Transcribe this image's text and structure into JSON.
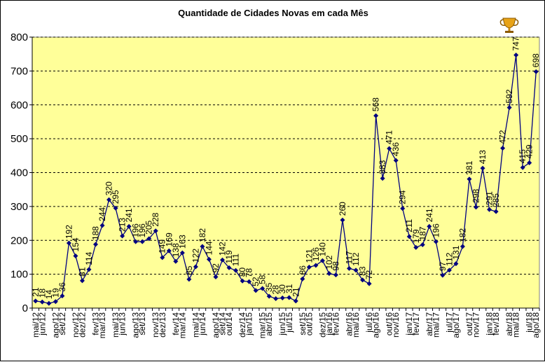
{
  "chart_data": {
    "type": "line",
    "title": "Quantidade de Cidades Novas em cada Mês",
    "xlabel": "",
    "ylabel": "",
    "ylim": [
      0,
      800
    ],
    "yticks": [
      "0",
      "100",
      "200",
      "300",
      "400",
      "500",
      "600",
      "700",
      "800"
    ],
    "grid": "horizontal dashed",
    "legend": "none",
    "trophy_icon": "trophy-icon",
    "colors": {
      "plot_bg": "#FFFF99",
      "line": "#000080",
      "marker": "#000080",
      "grid": "#000000"
    },
    "categories": [
      "mai/12",
      "jun/12",
      "jul/12",
      "ago/12",
      "set/12",
      "out/12",
      "nov/12",
      "dez/12",
      "jan/13",
      "fev/13",
      "mar/13",
      "abr/13",
      "mai/13",
      "jun/13",
      "jul/13",
      "ago/13",
      "set/13",
      "out/13",
      "nov/13",
      "dez/13",
      "jan/14",
      "fev/14",
      "mar/14",
      "abr/14",
      "mai/14",
      "jun/14",
      "jul/14",
      "ago/14",
      "set/14",
      "out/14",
      "nov/14",
      "dez/14",
      "jan/15",
      "fev/15",
      "mar/15",
      "abr/15",
      "mai/15",
      "jun/15",
      "jul/15",
      "ago/15",
      "set/15",
      "out/15",
      "nov/15",
      "dez/15",
      "jan/16",
      "fev/16",
      "mar/16",
      "abr/16",
      "mai/16",
      "jun/16",
      "jul/16",
      "ago/16",
      "set/16",
      "out/16",
      "nov/16",
      "dez/16",
      "jan/17",
      "fev/17",
      "mar/17",
      "abr/17",
      "mai/17",
      "jun/17",
      "jul/17",
      "ago/17",
      "set/17",
      "out/17",
      "nov/17",
      "dez/17",
      "jan/18",
      "fev/18",
      "mar/18",
      "abr/18",
      "mai/18",
      "jun/18",
      "jul/18",
      "ago/18"
    ],
    "xtick_labels": [
      "mai/12",
      "jun/12",
      "ago/12",
      "set/12",
      "nov/12",
      "dez/12",
      "fev/13",
      "mar/13",
      "mai/13",
      "jun/13",
      "ago/13",
      "set/13",
      "nov/13",
      "dez/13",
      "fev/14",
      "mar/14",
      "mai/14",
      "jun/14",
      "ago/14",
      "set/14",
      "out/14",
      "dez/14",
      "jan/15",
      "mar/15",
      "abr/15",
      "jun/15",
      "jul/15",
      "set/15",
      "out/15",
      "dez/15",
      "jan/16",
      "fev/16",
      "abr/16",
      "mai/16",
      "jul/16",
      "ago/16",
      "out/16",
      "nov/16",
      "jan/17",
      "fev/17",
      "abr/17",
      "mai/17",
      "jul/17",
      "ago/17",
      "out/17",
      "nov/17",
      "jan/18",
      "fev/18",
      "abr/18",
      "mai/18",
      "jul/18",
      "ago/18"
    ],
    "values": [
      21,
      18,
      14,
      19,
      36,
      192,
      154,
      81,
      114,
      188,
      244,
      320,
      295,
      213,
      241,
      196,
      196,
      205,
      228,
      149,
      169,
      138,
      163,
      85,
      122,
      182,
      144,
      92,
      142,
      119,
      111,
      80,
      78,
      52,
      58,
      35,
      28,
      30,
      31,
      21,
      86,
      121,
      126,
      140,
      102,
      98,
      260,
      117,
      112,
      83,
      72,
      568,
      383,
      471,
      436,
      294,
      211,
      179,
      187,
      241,
      196,
      97,
      112,
      131,
      182,
      381,
      298,
      413,
      291,
      285,
      472,
      592,
      747,
      415,
      429,
      698
    ]
  }
}
